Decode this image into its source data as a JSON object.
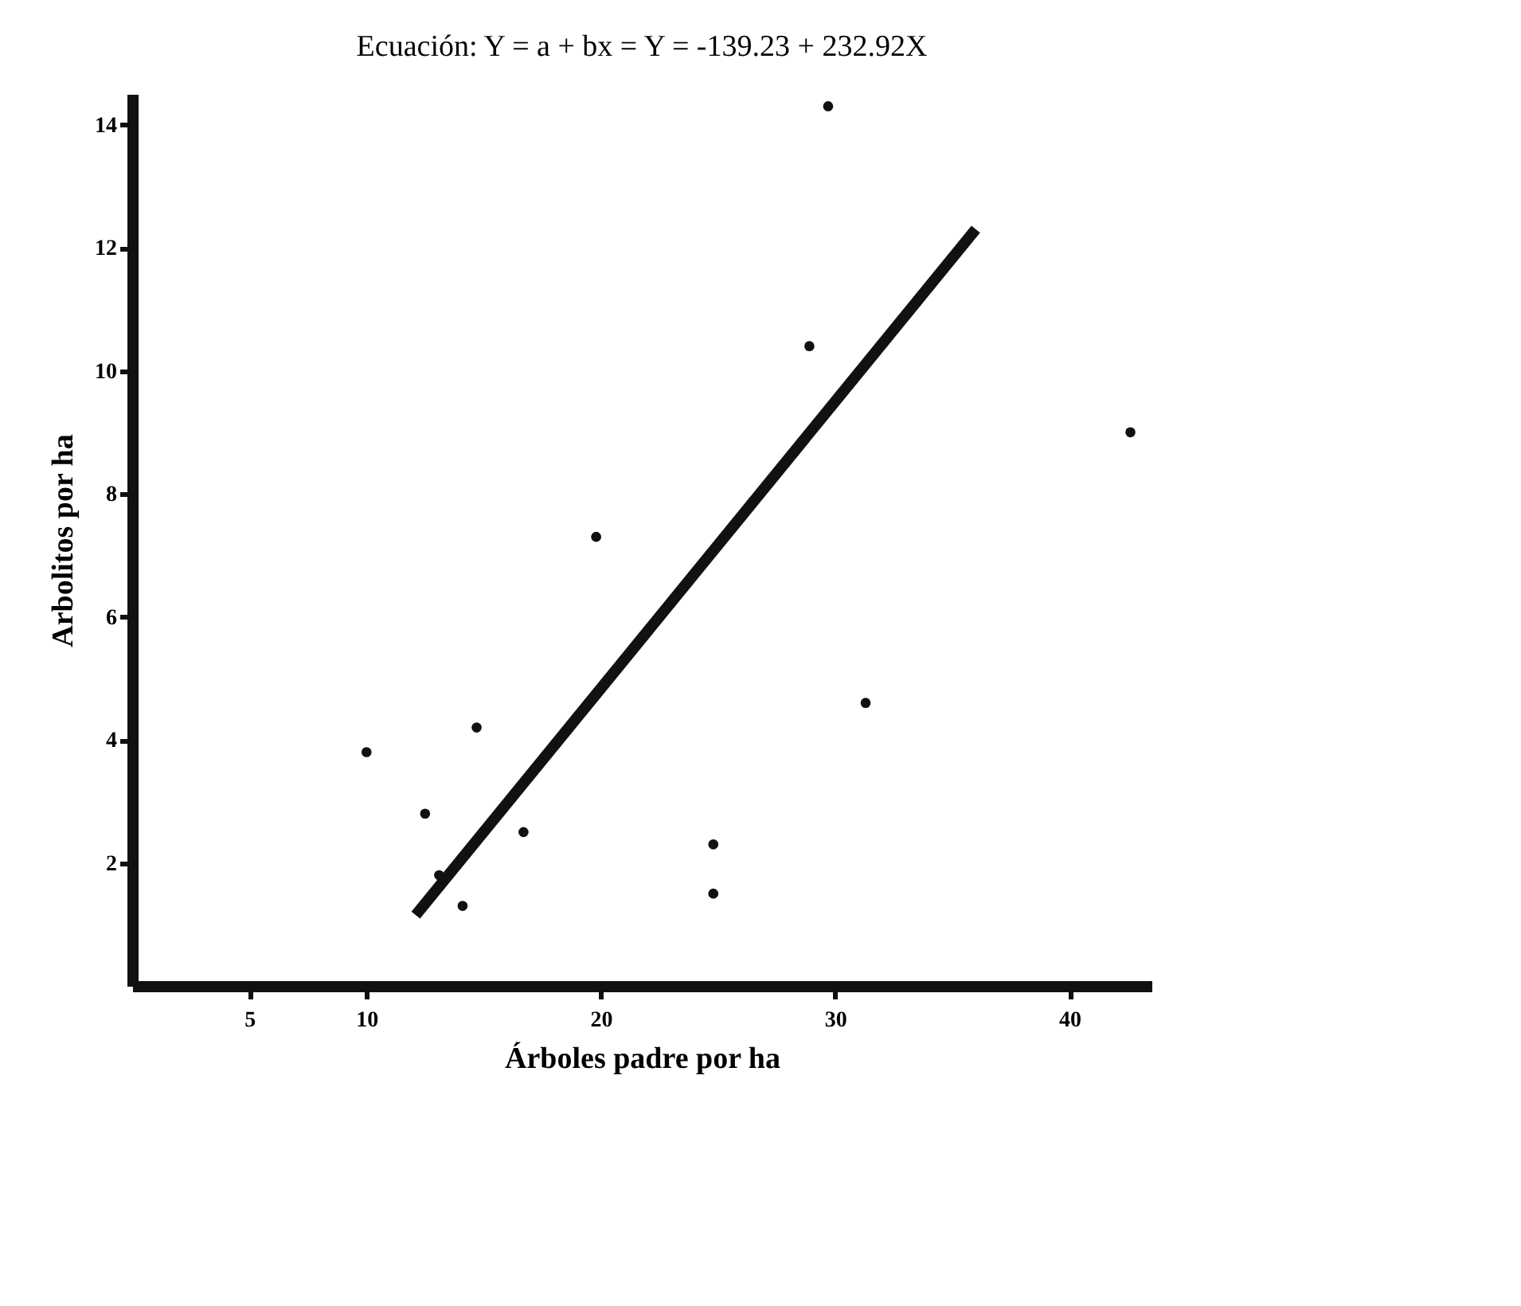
{
  "chart_data": {
    "type": "scatter",
    "title": "Ecuación:   Y = a + bx = Y = -139.23 + 232.92X",
    "xlabel": "Árboles padre por ha",
    "ylabel": "Arbolitos por ha",
    "xlim": [
      0,
      43.5
    ],
    "ylim": [
      0,
      14.5
    ],
    "xticks": [
      5,
      10,
      20,
      30,
      40
    ],
    "yticks": [
      2,
      4,
      6,
      8,
      10,
      12,
      14
    ],
    "grid": false,
    "marker": "circle",
    "series": [
      {
        "color": "#111111",
        "x": [
          10,
          12.5,
          13.1,
          14.7,
          14.1,
          16.7,
          19.8,
          24.8,
          24.8,
          28.9,
          29.7,
          31.3,
          42.6
        ],
        "values": [
          3.8,
          2.8,
          1.8,
          4.2,
          1.3,
          2.5,
          7.3,
          2.3,
          1.5,
          10.4,
          14.3,
          4.6,
          9.0
        ]
      },
      {
        "type": "line",
        "color": "#111111",
        "line_style": "solid",
        "marker": "none",
        "x": [
          12.1,
          36.0
        ],
        "values": [
          1.15,
          12.3
        ]
      }
    ]
  }
}
